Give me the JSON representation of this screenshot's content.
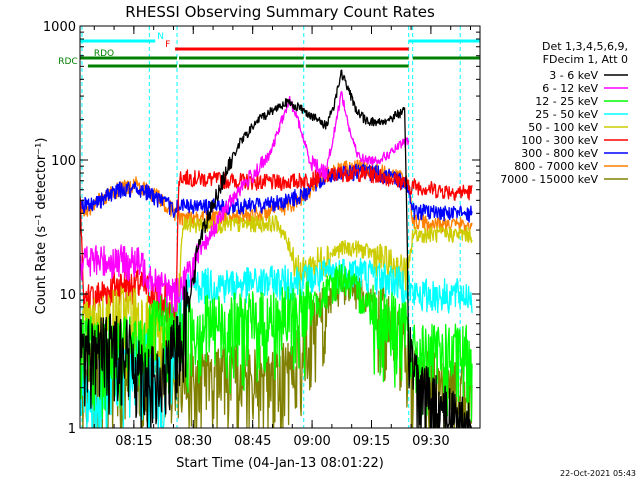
{
  "chart_data": {
    "type": "line",
    "title": "RHESSI Observing Summary Count Rates",
    "xlabel": "Start Time (04-Jan-13 08:01:22)",
    "ylabel": "Count Rate (s⁻¹ detector⁻¹)",
    "yscale": "log",
    "ylim": [
      1,
      1000
    ],
    "xlim_minutes": [
      0,
      101
    ],
    "x_tick_labels": [
      "08:15",
      "08:30",
      "08:45",
      "09:00",
      "09:15",
      "09:30"
    ],
    "x_tick_minutes": [
      13.6,
      28.6,
      43.6,
      58.6,
      73.6,
      88.6
    ],
    "y_tick_labels": [
      "1",
      "10",
      "100",
      "1000"
    ],
    "y_tick_values": [
      1,
      10,
      100,
      1000
    ],
    "legend_header": [
      "Det 1,3,4,5,6,9,",
      "FDecim 1, Att 0"
    ],
    "legend_position": "right",
    "timestamp": "22-Oct-2021 05:43",
    "flags": [
      {
        "label": "N",
        "color": "#00ffff",
        "segments": [
          [
            0,
            19
          ],
          [
            83,
            101
          ]
        ],
        "label_at": 19.5
      },
      {
        "label": "F",
        "color": "#ff0000",
        "segments": [
          [
            24,
            83
          ]
        ],
        "label_at": 21.5
      },
      {
        "label": "RDO",
        "color": "#008000",
        "segments": [
          [
            0,
            24.5
          ],
          [
            25,
            56.5
          ],
          [
            57,
            83
          ],
          [
            84,
            101
          ]
        ],
        "label_at": 3.5
      },
      {
        "label": "RDC",
        "color": "#008000",
        "segments": [
          [
            2,
            24.5
          ],
          [
            25,
            56.5
          ],
          [
            57,
            83
          ]
        ],
        "label_at": -5.5
      }
    ],
    "vlines_minutes": [
      0.5,
      17.5,
      24.5,
      56.5,
      83,
      84,
      96
    ],
    "series": [
      {
        "name": "3 - 6 keV",
        "color": "#000000",
        "x": [
          0,
          5,
          10,
          15,
          18,
          20,
          24,
          27,
          30,
          35,
          40,
          45,
          50,
          52,
          55,
          58,
          62,
          64,
          66,
          68,
          70,
          72,
          75,
          78,
          80,
          82,
          83,
          84,
          86,
          90,
          95,
          99
        ],
        "y": [
          4,
          4,
          4.5,
          3,
          2.5,
          2,
          4,
          8,
          25,
          60,
          130,
          200,
          250,
          270,
          250,
          220,
          180,
          250,
          450,
          320,
          230,
          200,
          190,
          200,
          220,
          230,
          5,
          3,
          2,
          1.5,
          1.2,
          1
        ]
      },
      {
        "name": "6 - 12 keV",
        "color": "#ff00ff",
        "x": [
          0,
          10,
          15,
          18,
          20,
          24,
          28,
          32,
          36,
          40,
          44,
          48,
          51,
          53,
          55,
          58,
          62,
          64,
          66,
          68,
          70,
          72,
          75,
          78,
          81,
          83
        ],
        "y": [
          18,
          18,
          17,
          14,
          12,
          10,
          15,
          25,
          40,
          60,
          80,
          110,
          200,
          280,
          200,
          100,
          80,
          150,
          320,
          170,
          110,
          100,
          100,
          110,
          130,
          140
        ]
      },
      {
        "name": "12 - 25 keV",
        "color": "#00ff00",
        "x": [
          0,
          10,
          15,
          18,
          20,
          24,
          28,
          40,
          50,
          55,
          58,
          62,
          64,
          66,
          68,
          72,
          76,
          80,
          83,
          84,
          90,
          99
        ],
        "y": [
          4,
          4,
          4,
          5,
          6,
          5,
          6,
          6,
          6.5,
          7,
          8,
          10,
          12,
          14,
          12,
          9,
          7,
          6,
          5,
          3.5,
          3.5,
          3.5
        ]
      },
      {
        "name": "25 - 50 keV",
        "color": "#00ffff",
        "x": [
          0,
          3,
          6,
          10,
          14,
          18,
          20,
          24,
          26,
          30,
          40,
          50,
          56,
          58,
          62,
          66,
          70,
          74,
          78,
          82,
          83,
          84,
          88,
          95,
          99
        ],
        "y": [
          2,
          1.5,
          2,
          3,
          3,
          3,
          2,
          3,
          11,
          12,
          12,
          12.5,
          13,
          13,
          14,
          15,
          15,
          14,
          13,
          12,
          12,
          10,
          10,
          10,
          10
        ]
      },
      {
        "name": "50 - 100 keV",
        "color": "#cccc00",
        "x": [
          0,
          5,
          10,
          14,
          17,
          20,
          23,
          24,
          26,
          30,
          40,
          50,
          56,
          58,
          62,
          66,
          70,
          74,
          78,
          82,
          83,
          84,
          88,
          95,
          99
        ],
        "y": [
          5,
          6,
          7,
          7,
          6,
          5,
          4,
          3.5,
          33,
          33,
          33,
          34,
          14,
          16,
          19,
          22,
          22,
          20,
          17,
          15,
          14,
          28,
          28,
          28,
          28
        ]
      },
      {
        "name": "100 - 300 keV",
        "color": "#ff0000",
        "x": [
          0,
          1,
          2,
          5,
          10,
          14,
          17,
          20,
          23,
          24,
          25,
          30,
          40,
          50,
          55,
          58,
          62,
          66,
          70,
          74,
          78,
          82,
          83,
          84,
          90,
          95,
          99
        ],
        "y": [
          60,
          8,
          9,
          10,
          12,
          12,
          11,
          9,
          6,
          5,
          75,
          73,
          70,
          68,
          70,
          72,
          76,
          80,
          80,
          78,
          74,
          68,
          62,
          65,
          60,
          58,
          58
        ]
      },
      {
        "name": "300 - 800 keV",
        "color": "#0000ff",
        "x": [
          0,
          5,
          10,
          14,
          17,
          20,
          23,
          24,
          25,
          30,
          40,
          50,
          56,
          60,
          65,
          70,
          75,
          80,
          83,
          84,
          90,
          95,
          99
        ],
        "y": [
          45,
          50,
          60,
          62,
          58,
          50,
          45,
          42,
          46,
          45,
          45,
          48,
          55,
          68,
          80,
          82,
          80,
          72,
          65,
          42,
          40,
          40,
          40
        ]
      },
      {
        "name": "800 - 7000 keV",
        "color": "#ff8000",
        "x": [
          0,
          5,
          10,
          14,
          17,
          20,
          23,
          24,
          25,
          30,
          40,
          50,
          56,
          60,
          65,
          70,
          75,
          80,
          83,
          84,
          90,
          95,
          99
        ],
        "y": [
          40,
          50,
          62,
          66,
          60,
          52,
          44,
          40,
          38,
          37,
          38,
          42,
          52,
          70,
          85,
          88,
          84,
          76,
          68,
          35,
          33,
          33,
          33
        ]
      },
      {
        "name": "7000 - 15000 keV",
        "color": "#808000",
        "x": [
          0,
          5,
          10,
          14,
          17,
          20,
          23,
          24,
          26,
          30,
          40,
          50,
          54,
          58,
          62,
          66,
          70,
          74,
          78,
          82,
          83,
          84,
          88,
          95,
          99
        ],
        "y": [
          3,
          2.5,
          2.5,
          2.5,
          2.5,
          2.5,
          2.5,
          2.5,
          2.5,
          2.5,
          2.5,
          2.5,
          3,
          5,
          8,
          11,
          11,
          9,
          6,
          4,
          3,
          2.5,
          2.2,
          2,
          2
        ]
      }
    ]
  }
}
